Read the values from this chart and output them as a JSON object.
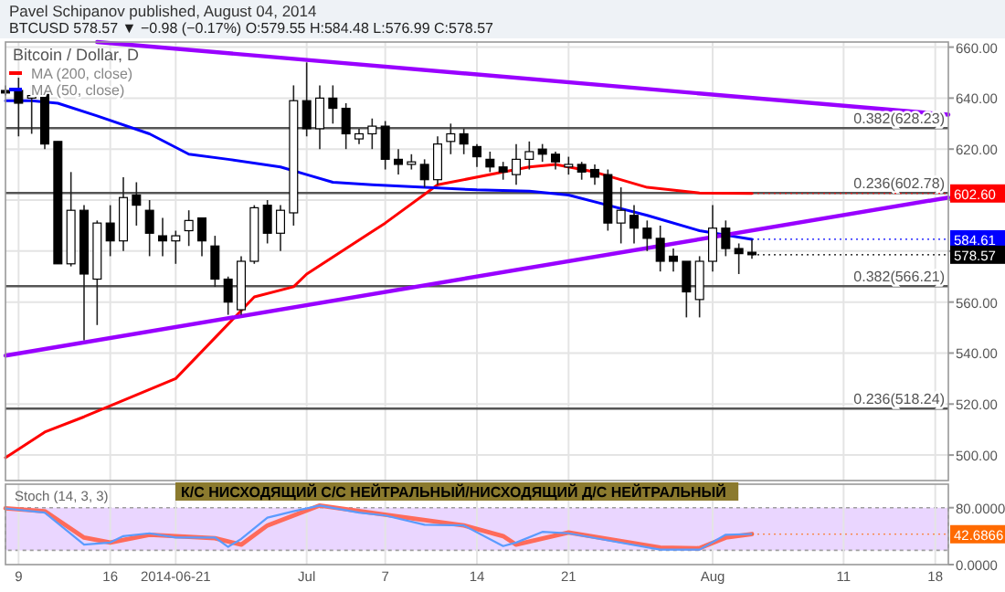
{
  "chart_data": [
    {
      "type": "candlestick",
      "title": "Pavel Schipanov published, August 04, 2014",
      "subtitle": "BTCUSD 578.57 ▼ −0.98 (−0.17%) O:579.55 H:584.48 L:576.99 C:578.57",
      "legend_title": "Bitcoin / Dollar, D",
      "legend": "top left",
      "grid": true,
      "tick_labels": "y",
      "x": [
        "2014-06-08",
        "2014-06-09",
        "2014-06-10",
        "2014-06-11",
        "2014-06-12",
        "2014-06-13",
        "2014-06-14",
        "2014-06-15",
        "2014-06-16",
        "2014-06-17",
        "2014-06-18",
        "2014-06-19",
        "2014-06-20",
        "2014-06-21",
        "2014-06-22",
        "2014-06-23",
        "2014-06-24",
        "2014-06-25",
        "2014-06-26",
        "2014-06-27",
        "2014-06-28",
        "2014-06-29",
        "2014-06-30",
        "2014-07-01",
        "2014-07-02",
        "2014-07-03",
        "2014-07-04",
        "2014-07-05",
        "2014-07-06",
        "2014-07-07",
        "2014-07-08",
        "2014-07-09",
        "2014-07-10",
        "2014-07-11",
        "2014-07-12",
        "2014-07-13",
        "2014-07-14",
        "2014-07-15",
        "2014-07-16",
        "2014-07-17",
        "2014-07-18",
        "2014-07-19",
        "2014-07-20",
        "2014-07-21",
        "2014-07-22",
        "2014-07-23",
        "2014-07-24",
        "2014-07-25",
        "2014-07-26",
        "2014-07-27",
        "2014-07-28",
        "2014-07-29",
        "2014-07-30",
        "2014-07-31",
        "2014-08-01",
        "2014-08-02",
        "2014-08-03",
        "2014-08-04"
      ],
      "ohlc": [
        [
          643,
          645,
          641,
          642
        ],
        [
          643,
          648,
          625,
          638
        ],
        [
          640,
          645,
          626,
          641
        ],
        [
          643,
          643,
          620,
          622
        ],
        [
          623,
          623,
          575,
          575
        ],
        [
          575,
          611,
          574,
          596
        ],
        [
          596,
          598,
          545,
          571
        ],
        [
          569,
          592,
          551,
          591
        ],
        [
          591,
          598,
          578,
          584
        ],
        [
          584,
          609,
          580,
          601
        ],
        [
          602,
          607,
          590,
          598
        ],
        [
          596,
          600,
          578,
          587
        ],
        [
          586,
          593,
          578,
          584
        ],
        [
          584,
          588,
          575,
          586
        ],
        [
          588,
          596,
          582,
          592
        ],
        [
          593,
          593,
          578,
          584
        ],
        [
          582,
          586,
          566,
          569
        ],
        [
          569,
          570,
          555,
          560
        ],
        [
          557,
          578,
          555,
          576
        ],
        [
          576,
          598,
          575,
          597
        ],
        [
          598,
          600,
          583,
          587
        ],
        [
          587,
          598,
          580,
          596
        ],
        [
          595,
          645,
          590,
          639
        ],
        [
          639,
          654,
          625,
          628
        ],
        [
          628,
          645,
          620,
          640
        ],
        [
          640,
          645,
          630,
          636
        ],
        [
          636,
          638,
          620,
          626
        ],
        [
          624,
          628,
          622,
          626
        ],
        [
          626,
          632,
          620,
          629
        ],
        [
          629,
          631,
          612,
          616
        ],
        [
          616,
          620,
          610,
          614
        ],
        [
          614,
          618,
          612,
          615
        ],
        [
          614,
          616,
          605,
          608
        ],
        [
          608,
          625,
          606,
          622
        ],
        [
          623,
          630,
          618,
          626
        ],
        [
          626,
          628,
          618,
          622
        ],
        [
          621,
          622,
          613,
          617
        ],
        [
          616,
          619,
          611,
          613
        ],
        [
          613,
          615,
          608,
          611
        ],
        [
          610,
          622,
          606,
          616
        ],
        [
          616,
          623,
          612,
          619
        ],
        [
          620,
          622,
          615,
          618
        ],
        [
          618,
          619,
          612,
          615
        ],
        [
          613,
          617,
          610,
          614
        ],
        [
          614,
          615,
          608,
          611
        ],
        [
          612,
          614,
          606,
          609
        ],
        [
          610,
          612,
          588,
          591
        ],
        [
          591,
          605,
          583,
          596
        ],
        [
          594,
          598,
          583,
          589
        ],
        [
          589,
          592,
          580,
          585
        ],
        [
          585,
          590,
          572,
          576
        ],
        [
          578,
          581,
          572,
          576
        ],
        [
          576,
          576,
          554,
          564
        ],
        [
          561,
          578,
          554,
          576
        ],
        [
          576,
          598,
          572,
          589
        ],
        [
          589,
          592,
          578,
          581
        ],
        [
          581,
          583,
          571,
          579
        ],
        [
          579.55,
          584.48,
          576.99,
          578.57
        ]
      ],
      "series": [
        {
          "name": "MA (200, close)",
          "type": "line",
          "color": "#ff0000",
          "x": [
            "2014-06-08",
            "2014-06-11",
            "2014-06-14",
            "2014-06-21",
            "2014-06-27",
            "2014-06-30",
            "2014-07-01",
            "2014-07-07",
            "2014-07-11",
            "2014-07-16",
            "2014-07-18",
            "2014-07-20",
            "2014-07-23",
            "2014-07-27",
            "2014-07-31",
            "2014-08-04"
          ],
          "values": [
            499,
            509,
            515,
            530,
            562,
            566,
            571,
            591,
            606,
            611,
            613,
            614,
            611,
            605,
            602.8,
            602.6
          ]
        },
        {
          "name": "MA (50, close)",
          "type": "line",
          "color": "#0000ff",
          "x": [
            "2014-06-08",
            "2014-06-10",
            "2014-06-12",
            "2014-06-15",
            "2014-06-19",
            "2014-06-22",
            "2014-06-25",
            "2014-06-29",
            "2014-07-01",
            "2014-07-03",
            "2014-07-06",
            "2014-07-10",
            "2014-07-14",
            "2014-07-18",
            "2014-07-21",
            "2014-07-24",
            "2014-07-27",
            "2014-07-31",
            "2014-08-04"
          ],
          "values": [
            639,
            639,
            638,
            633,
            626,
            618,
            616,
            613,
            610,
            607,
            606,
            605,
            604,
            603.5,
            602,
            598,
            594,
            588,
            584.6
          ]
        },
        {
          "type": "line",
          "color": "#9900ff",
          "x": [
            "2014-06-15",
            "2014-08-19"
          ],
          "values": [
            662,
            633.5
          ]
        },
        {
          "type": "line",
          "color": "#9900ff",
          "x": [
            "2014-06-08",
            "2014-08-19"
          ],
          "values": [
            539,
            601
          ]
        }
      ],
      "ref_lines": [
        {
          "axis": "y",
          "value": 628.23,
          "label": "0.382(628.23)",
          "color": "#555555"
        },
        {
          "axis": "y",
          "value": 602.78,
          "label": "0.236(602.78)",
          "color": "#555555"
        },
        {
          "axis": "y",
          "value": 566.21,
          "label": "0.382(566.21)",
          "color": "#555555"
        },
        {
          "axis": "y",
          "value": 518.24,
          "label": "0.236(518.24)",
          "color": "#555555"
        }
      ],
      "annotations": [
        {
          "text": "602.60",
          "x": "2014-08-04",
          "y": 602.6
        },
        {
          "text": "584.61",
          "x": "2014-08-04",
          "y": 584.61
        },
        {
          "text": "578.57",
          "x": "2014-08-04",
          "y": 578.57
        }
      ],
      "xlim": [
        "2014-06-08",
        "2014-08-19"
      ],
      "ylim": [
        490,
        662
      ],
      "xticks": [
        {
          "value": "2014-06-09",
          "label": null
        },
        {
          "value": "2014-06-16",
          "label": null
        },
        {
          "value": "2014-06-21",
          "label": null
        },
        {
          "value": "2014-07-01",
          "label": null
        },
        {
          "value": "2014-07-07",
          "label": null
        },
        {
          "value": "2014-07-14",
          "label": null
        },
        {
          "value": "2014-07-21",
          "label": null
        },
        {
          "value": "2014-08-01",
          "label": null
        },
        {
          "value": "2014-08-11",
          "label": null
        },
        {
          "value": "2014-08-18",
          "label": null
        }
      ],
      "yticks": [
        {
          "value": 500,
          "label": "500.00"
        },
        {
          "value": 520,
          "label": "520.00"
        },
        {
          "value": 540,
          "label": "540.00"
        },
        {
          "value": 560,
          "label": "560.00"
        },
        {
          "value": 580,
          "label": null
        },
        {
          "value": 600,
          "label": null
        },
        {
          "value": 620,
          "label": "620.00"
        },
        {
          "value": 640,
          "label": "640.00"
        },
        {
          "value": 660,
          "label": "660.00"
        }
      ]
    },
    {
      "type": "line",
      "title": "Stoch (14, 3, 3)",
      "grid": "x",
      "series": [
        {
          "color": "#5b9bff",
          "x": [
            "2014-06-08",
            "2014-06-11",
            "2014-06-14",
            "2014-06-16",
            "2014-06-17",
            "2014-06-19",
            "2014-06-21",
            "2014-06-24",
            "2014-06-25",
            "2014-06-26",
            "2014-06-28",
            "2014-06-30",
            "2014-07-02",
            "2014-07-05",
            "2014-07-07",
            "2014-07-10",
            "2014-07-13",
            "2014-07-16",
            "2014-07-17",
            "2014-07-19",
            "2014-07-21",
            "2014-07-24",
            "2014-07-28",
            "2014-07-31",
            "2014-08-02",
            "2014-08-04"
          ],
          "values": [
            79,
            73,
            28,
            31,
            40,
            44,
            38,
            38,
            25,
            36,
            66,
            75,
            83,
            73,
            69,
            56,
            55,
            26,
            31,
            46,
            44,
            34,
            21,
            21,
            42,
            43
          ]
        },
        {
          "color": "#ff6b5b",
          "x": [
            "2014-06-08",
            "2014-06-11",
            "2014-06-14",
            "2014-06-16",
            "2014-06-19",
            "2014-06-24",
            "2014-06-26",
            "2014-06-28",
            "2014-07-02",
            "2014-07-07",
            "2014-07-13",
            "2014-07-16",
            "2014-07-17",
            "2014-07-21",
            "2014-07-28",
            "2014-07-31",
            "2014-08-02",
            "2014-08-04"
          ],
          "values": [
            79,
            75,
            38,
            31,
            42,
            37,
            28,
            55,
            83,
            70,
            55,
            40,
            28,
            45,
            24,
            23,
            38,
            43
          ]
        }
      ],
      "bands": [
        {
          "axis": "y",
          "from": 20,
          "to": 80,
          "color": "#e6ccff"
        }
      ],
      "annotations": [
        "К/С НИСХОДЯЩИЙ С/С НЕЙТРАЛЬНЫЙ/НИСХОДЯЩИЙ Д/С НЕЙТРАЛЬНЫЙ",
        {
          "text": "42.6866",
          "x": "2014-08-04",
          "y": 42.6866
        }
      ],
      "xlim": [
        "2014-06-08",
        "2014-08-19"
      ],
      "ylim": [
        0,
        113
      ],
      "xticks": [
        {
          "value": "2014-06-09",
          "label": "9"
        },
        {
          "value": "2014-06-16",
          "label": "16"
        },
        {
          "value": "2014-06-21",
          "label": "2014-06-21"
        },
        {
          "value": "2014-07-01",
          "label": "Jul"
        },
        {
          "value": "2014-07-07",
          "label": "7"
        },
        {
          "value": "2014-07-14",
          "label": "14"
        },
        {
          "value": "2014-07-21",
          "label": "21"
        },
        {
          "value": "2014-08-01",
          "label": "Aug"
        },
        {
          "value": "2014-08-11",
          "label": "11"
        },
        {
          "value": "2014-08-18",
          "label": "18"
        }
      ],
      "yticks": [
        {
          "value": 80,
          "label": "80.0000"
        },
        {
          "value": 0,
          "label": "0.0000"
        }
      ]
    }
  ]
}
